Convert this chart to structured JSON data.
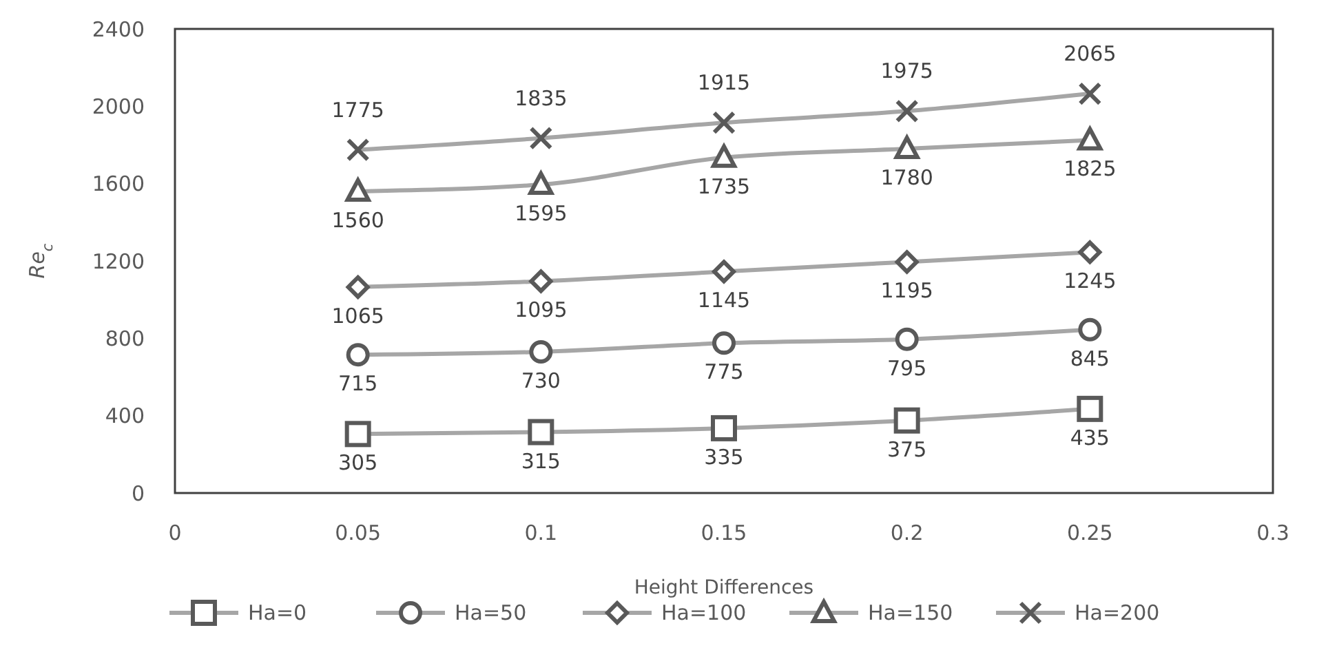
{
  "chart_data": {
    "type": "line",
    "xlabel": "Height Differences",
    "ylabel": "Re$_{c}$",
    "x": [
      0.05,
      0.1,
      0.15,
      0.2,
      0.25
    ],
    "xlim": [
      0,
      0.3
    ],
    "xticks": [
      0,
      0.05,
      0.1,
      0.15,
      0.2,
      0.25,
      0.3
    ],
    "ylim": [
      0,
      2400
    ],
    "yticks": [
      0,
      400,
      800,
      1200,
      1600,
      2000,
      2400
    ],
    "grid": false,
    "legend": "bottom",
    "data_labels": true,
    "line_style": "solid",
    "series": [
      {
        "name": "Ha=0",
        "color": "#a6a6a6",
        "marker": "square",
        "values": [
          305,
          315,
          335,
          375,
          435
        ]
      },
      {
        "name": "Ha=50",
        "color": "#a6a6a6",
        "marker": "circle",
        "values": [
          715,
          730,
          775,
          795,
          845
        ]
      },
      {
        "name": "Ha=100",
        "color": "#a6a6a6",
        "marker": "diamond",
        "values": [
          1065,
          1095,
          1145,
          1195,
          1245
        ]
      },
      {
        "name": "Ha=150",
        "color": "#a6a6a6",
        "marker": "triangle",
        "values": [
          1560,
          1595,
          1735,
          1780,
          1825
        ]
      },
      {
        "name": "Ha=200",
        "color": "#a6a6a6",
        "marker": "cross",
        "values": [
          1775,
          1835,
          1915,
          1975,
          2065
        ]
      }
    ]
  }
}
